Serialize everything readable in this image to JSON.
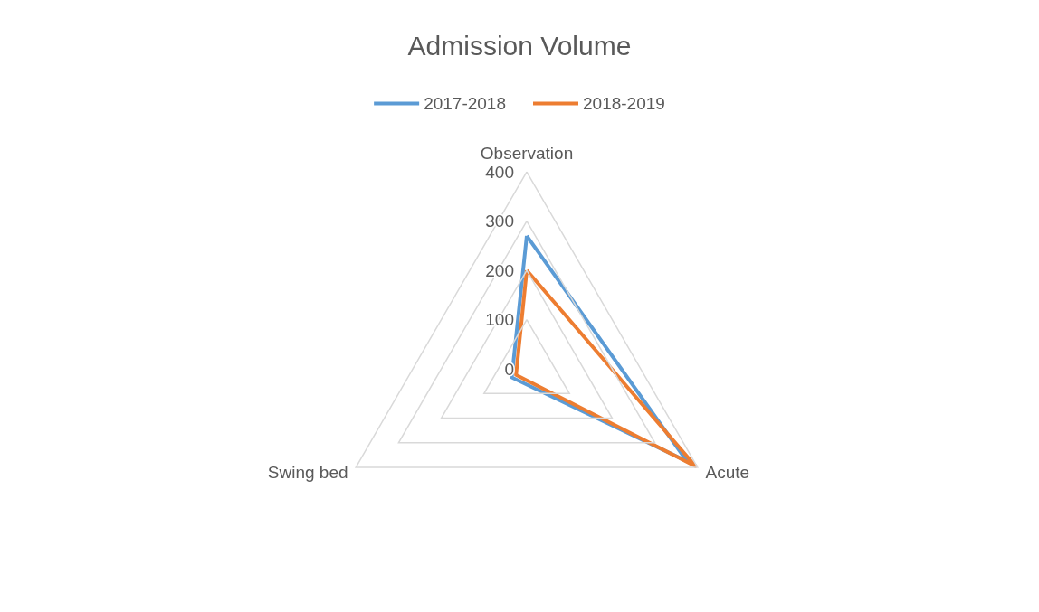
{
  "chart_data": {
    "type": "radar",
    "title": "Admission Volume",
    "categories": [
      "Observation",
      "Acute",
      "Swing bed"
    ],
    "series": [
      {
        "name": "2017-2018",
        "color": "#5b9bd5",
        "values": [
          270,
          375,
          35
        ]
      },
      {
        "name": "2018-2019",
        "color": "#ed7d31",
        "values": [
          200,
          395,
          25
        ]
      }
    ],
    "ylim": [
      0,
      400
    ],
    "yticks": [
      0,
      100,
      200,
      300,
      400
    ],
    "legend": "top",
    "grid": true
  }
}
